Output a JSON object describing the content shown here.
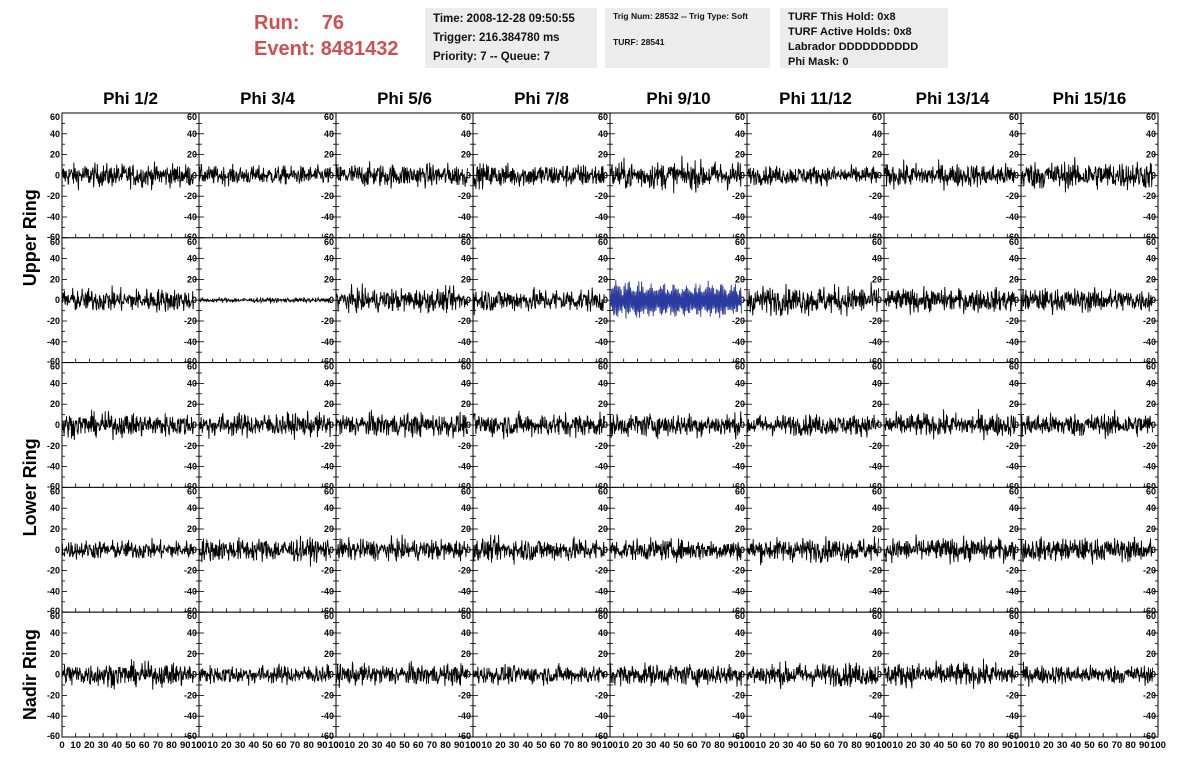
{
  "header": {
    "run_label": "Run:",
    "run_value": "76",
    "event_label": "Event:",
    "event_value": "8481432",
    "time": "Time: 2008-12-28 09:50:55",
    "trigger": "Trigger: 216.384780 ms",
    "priority": "Priority: 7 -- Queue: 7",
    "trig_num": "Trig Num: 28532 -- Trig Type: Soft",
    "turf": "TURF: 28541",
    "turf_this_hold": "TURF This Hold: 0x8",
    "turf_active_holds": "TURF Active Holds: 0x8",
    "labrador": "Labrador DDDDDDDDDD",
    "phi_mask": "Phi Mask: 0"
  },
  "colors": {
    "title_red": "#d05050",
    "box_gray": "#ececec",
    "trace": "#000000",
    "highlight_trace": "#2b3a9e"
  },
  "chart_data": {
    "type": "line",
    "columns": [
      "Phi 1/2",
      "Phi 3/4",
      "Phi 5/6",
      "Phi 7/8",
      "Phi 9/10",
      "Phi 11/12",
      "Phi 13/14",
      "Phi 15/16"
    ],
    "row_groups": [
      {
        "label": "Upper Ring",
        "rows": 2
      },
      {
        "label": "Lower Ring",
        "rows": 2
      },
      {
        "label": "Nadir Ring",
        "rows": 1
      }
    ],
    "xlim": [
      0,
      100
    ],
    "ylim": [
      -60,
      60
    ],
    "x_tick_labels": [
      "0",
      "10",
      "20",
      "30",
      "40",
      "50",
      "60",
      "70",
      "80",
      "90",
      "100"
    ],
    "y_tick_labels": [
      "-60",
      "-40",
      "-20",
      "0",
      "20",
      "40",
      "60"
    ],
    "highlight_panel": {
      "row": 1,
      "col": 4
    },
    "traces": {
      "note_x": "waveforms sampled 0..96, noise-like, amplitudes per panel",
      "amplitude": [
        [
          10,
          8,
          10,
          10,
          12,
          8,
          10,
          12
        ],
        [
          10,
          2,
          10,
          10,
          12,
          12,
          10,
          10
        ],
        [
          10,
          10,
          10,
          10,
          10,
          9,
          10,
          10
        ],
        [
          8,
          10,
          9,
          10,
          9,
          10,
          10,
          10
        ],
        [
          10,
          8,
          9,
          8,
          9,
          10,
          10,
          8
        ]
      ]
    }
  }
}
